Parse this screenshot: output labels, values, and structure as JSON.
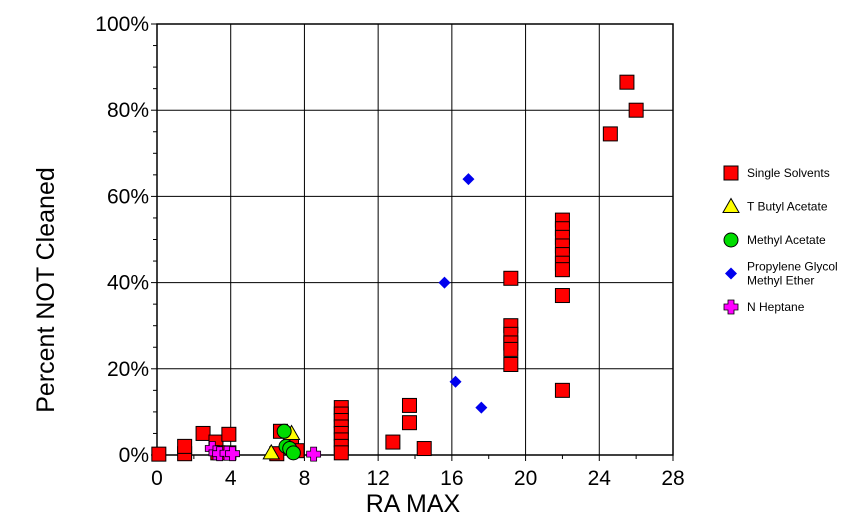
{
  "chart_data": {
    "type": "scatter",
    "title": "",
    "xlabel": "RA MAX",
    "ylabel": "Percent NOT Cleaned",
    "xlim": [
      0,
      28
    ],
    "ylim": [
      0,
      100
    ],
    "x_ticks": [
      0,
      4,
      8,
      12,
      16,
      20,
      24,
      28
    ],
    "x_tick_labels": [
      "0",
      "4",
      "8",
      "12",
      "16",
      "20",
      "24",
      "28"
    ],
    "y_ticks": [
      0,
      20,
      40,
      60,
      80,
      100
    ],
    "y_tick_labels": [
      "0%",
      "20%",
      "40%",
      "60%",
      "80%",
      "100%"
    ],
    "grid": true,
    "legend_position": "right",
    "series": [
      {
        "name": "Single Solvents",
        "marker": "square",
        "color": "#ff0000",
        "points": [
          [
            0.1,
            0.2
          ],
          [
            1.5,
            0.3
          ],
          [
            1.5,
            2.0
          ],
          [
            2.5,
            5.0
          ],
          [
            3.2,
            3.0
          ],
          [
            3.3,
            0.5
          ],
          [
            3.9,
            4.8
          ],
          [
            3.9,
            0.5
          ],
          [
            6.5,
            0.3
          ],
          [
            6.7,
            5.5
          ],
          [
            7.3,
            2.0
          ],
          [
            7.6,
            1.0
          ],
          [
            10.0,
            11.0
          ],
          [
            10.0,
            9.5
          ],
          [
            10.0,
            8.0
          ],
          [
            10.0,
            6.5
          ],
          [
            10.0,
            5.0
          ],
          [
            10.0,
            3.5
          ],
          [
            10.0,
            2.0
          ],
          [
            10.0,
            0.5
          ],
          [
            12.8,
            3.0
          ],
          [
            13.7,
            11.5
          ],
          [
            13.7,
            7.5
          ],
          [
            14.5,
            1.5
          ],
          [
            19.2,
            41.0
          ],
          [
            19.2,
            30.0
          ],
          [
            19.2,
            28.0
          ],
          [
            19.2,
            26.0
          ],
          [
            19.2,
            24.5
          ],
          [
            19.2,
            21.0
          ],
          [
            22.0,
            54.5
          ],
          [
            22.0,
            52.5
          ],
          [
            22.0,
            50.5
          ],
          [
            22.0,
            48.5
          ],
          [
            22.0,
            46.5
          ],
          [
            22.0,
            44.5
          ],
          [
            22.0,
            43.0
          ],
          [
            22.0,
            37.0
          ],
          [
            22.0,
            15.0
          ],
          [
            24.6,
            74.5
          ],
          [
            25.5,
            86.5
          ],
          [
            26.0,
            80.0
          ]
        ]
      },
      {
        "name": "T Butyl Acetate",
        "marker": "triangle",
        "color": "#ffff00",
        "points": [
          [
            6.2,
            0.5
          ],
          [
            7.3,
            5.0
          ]
        ]
      },
      {
        "name": "Methyl Acetate",
        "marker": "circle",
        "color": "#00dd00",
        "points": [
          [
            6.9,
            5.5
          ],
          [
            7.0,
            2.0
          ],
          [
            7.2,
            1.5
          ],
          [
            7.4,
            0.5
          ]
        ]
      },
      {
        "name": "Propylene Glycol Methyl Ether",
        "legend_lines": [
          "Propylene Glycol",
          "Methyl Ether"
        ],
        "marker": "diamond",
        "color": "#0000ee",
        "points": [
          [
            15.6,
            40.0
          ],
          [
            16.2,
            17.0
          ],
          [
            16.9,
            64.0
          ],
          [
            17.6,
            11.0
          ]
        ]
      },
      {
        "name": "N Heptane",
        "marker": "cross-square",
        "color": "#ff00ff",
        "points": [
          [
            3.0,
            1.5
          ],
          [
            3.2,
            0.5
          ],
          [
            3.4,
            0.3
          ],
          [
            3.8,
            0.4
          ],
          [
            4.1,
            0.3
          ],
          [
            8.5,
            0.2
          ]
        ]
      }
    ]
  }
}
